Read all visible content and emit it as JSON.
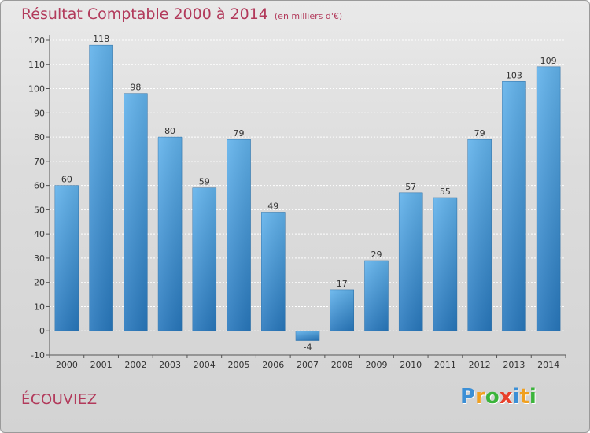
{
  "chart_data": {
    "type": "bar",
    "title": "Résultat Comptable 2000 à 2014",
    "subtitle": "(en milliers d'€)",
    "categories": [
      "2000",
      "2001",
      "2002",
      "2003",
      "2004",
      "2005",
      "2006",
      "2007",
      "2008",
      "2009",
      "2010",
      "2011",
      "2012",
      "2013",
      "2014"
    ],
    "values": [
      60,
      118,
      98,
      80,
      59,
      79,
      49,
      -4,
      17,
      29,
      57,
      55,
      79,
      103,
      109
    ],
    "ylim": [
      -10,
      120
    ],
    "yticks": [
      -10,
      0,
      10,
      20,
      30,
      40,
      50,
      60,
      70,
      80,
      90,
      100,
      110,
      120
    ],
    "xlabel": "",
    "ylabel": "",
    "grid": true
  },
  "commune": "ÉCOUVIEZ",
  "logo": {
    "letters": [
      "P",
      "r",
      "o",
      "x",
      "i",
      "t",
      "i"
    ],
    "colors": [
      "#3b8fd6",
      "#f0a020",
      "#3bb43b",
      "#e8402a",
      "#3b8fd6",
      "#f0a020",
      "#3bb43b"
    ]
  },
  "colors": {
    "bar_top": "#5fb0ea",
    "bar_bottom": "#2a7fc0",
    "accent": "#b23a5b"
  }
}
